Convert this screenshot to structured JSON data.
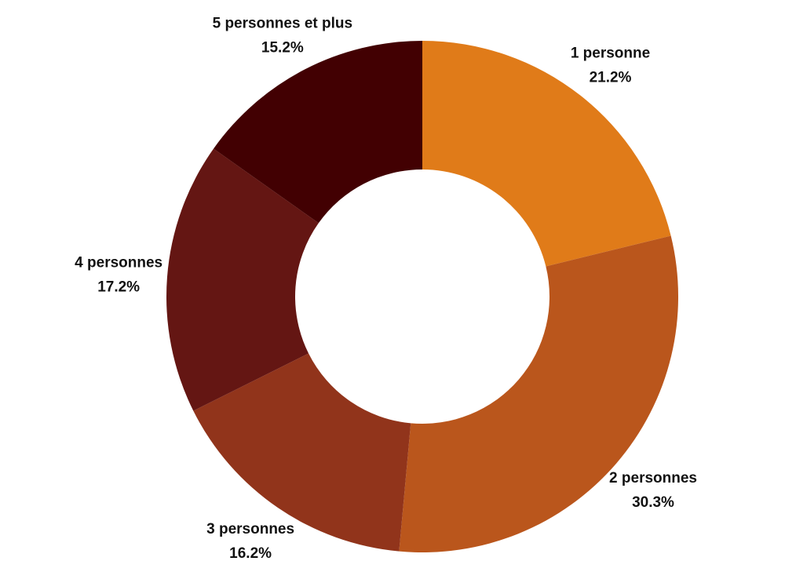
{
  "chart_data": {
    "type": "pie",
    "donut": true,
    "start_angle_deg": 0,
    "direction": "clockwise",
    "slices": [
      {
        "label": "1 personne",
        "value": 21.2,
        "display": "21.2%",
        "color": "#E07B19"
      },
      {
        "label": "2 personnes",
        "value": 30.3,
        "display": "30.3%",
        "color": "#BA561C"
      },
      {
        "label": "3 personnes",
        "value": 16.2,
        "display": "16.2%",
        "color": "#91341B"
      },
      {
        "label": "4 personnes",
        "value": 17.2,
        "display": "17.2%",
        "color": "#641613"
      },
      {
        "label": "5 personnes et plus",
        "value": 15.2,
        "display": "15.2%",
        "color": "#420002"
      }
    ]
  }
}
